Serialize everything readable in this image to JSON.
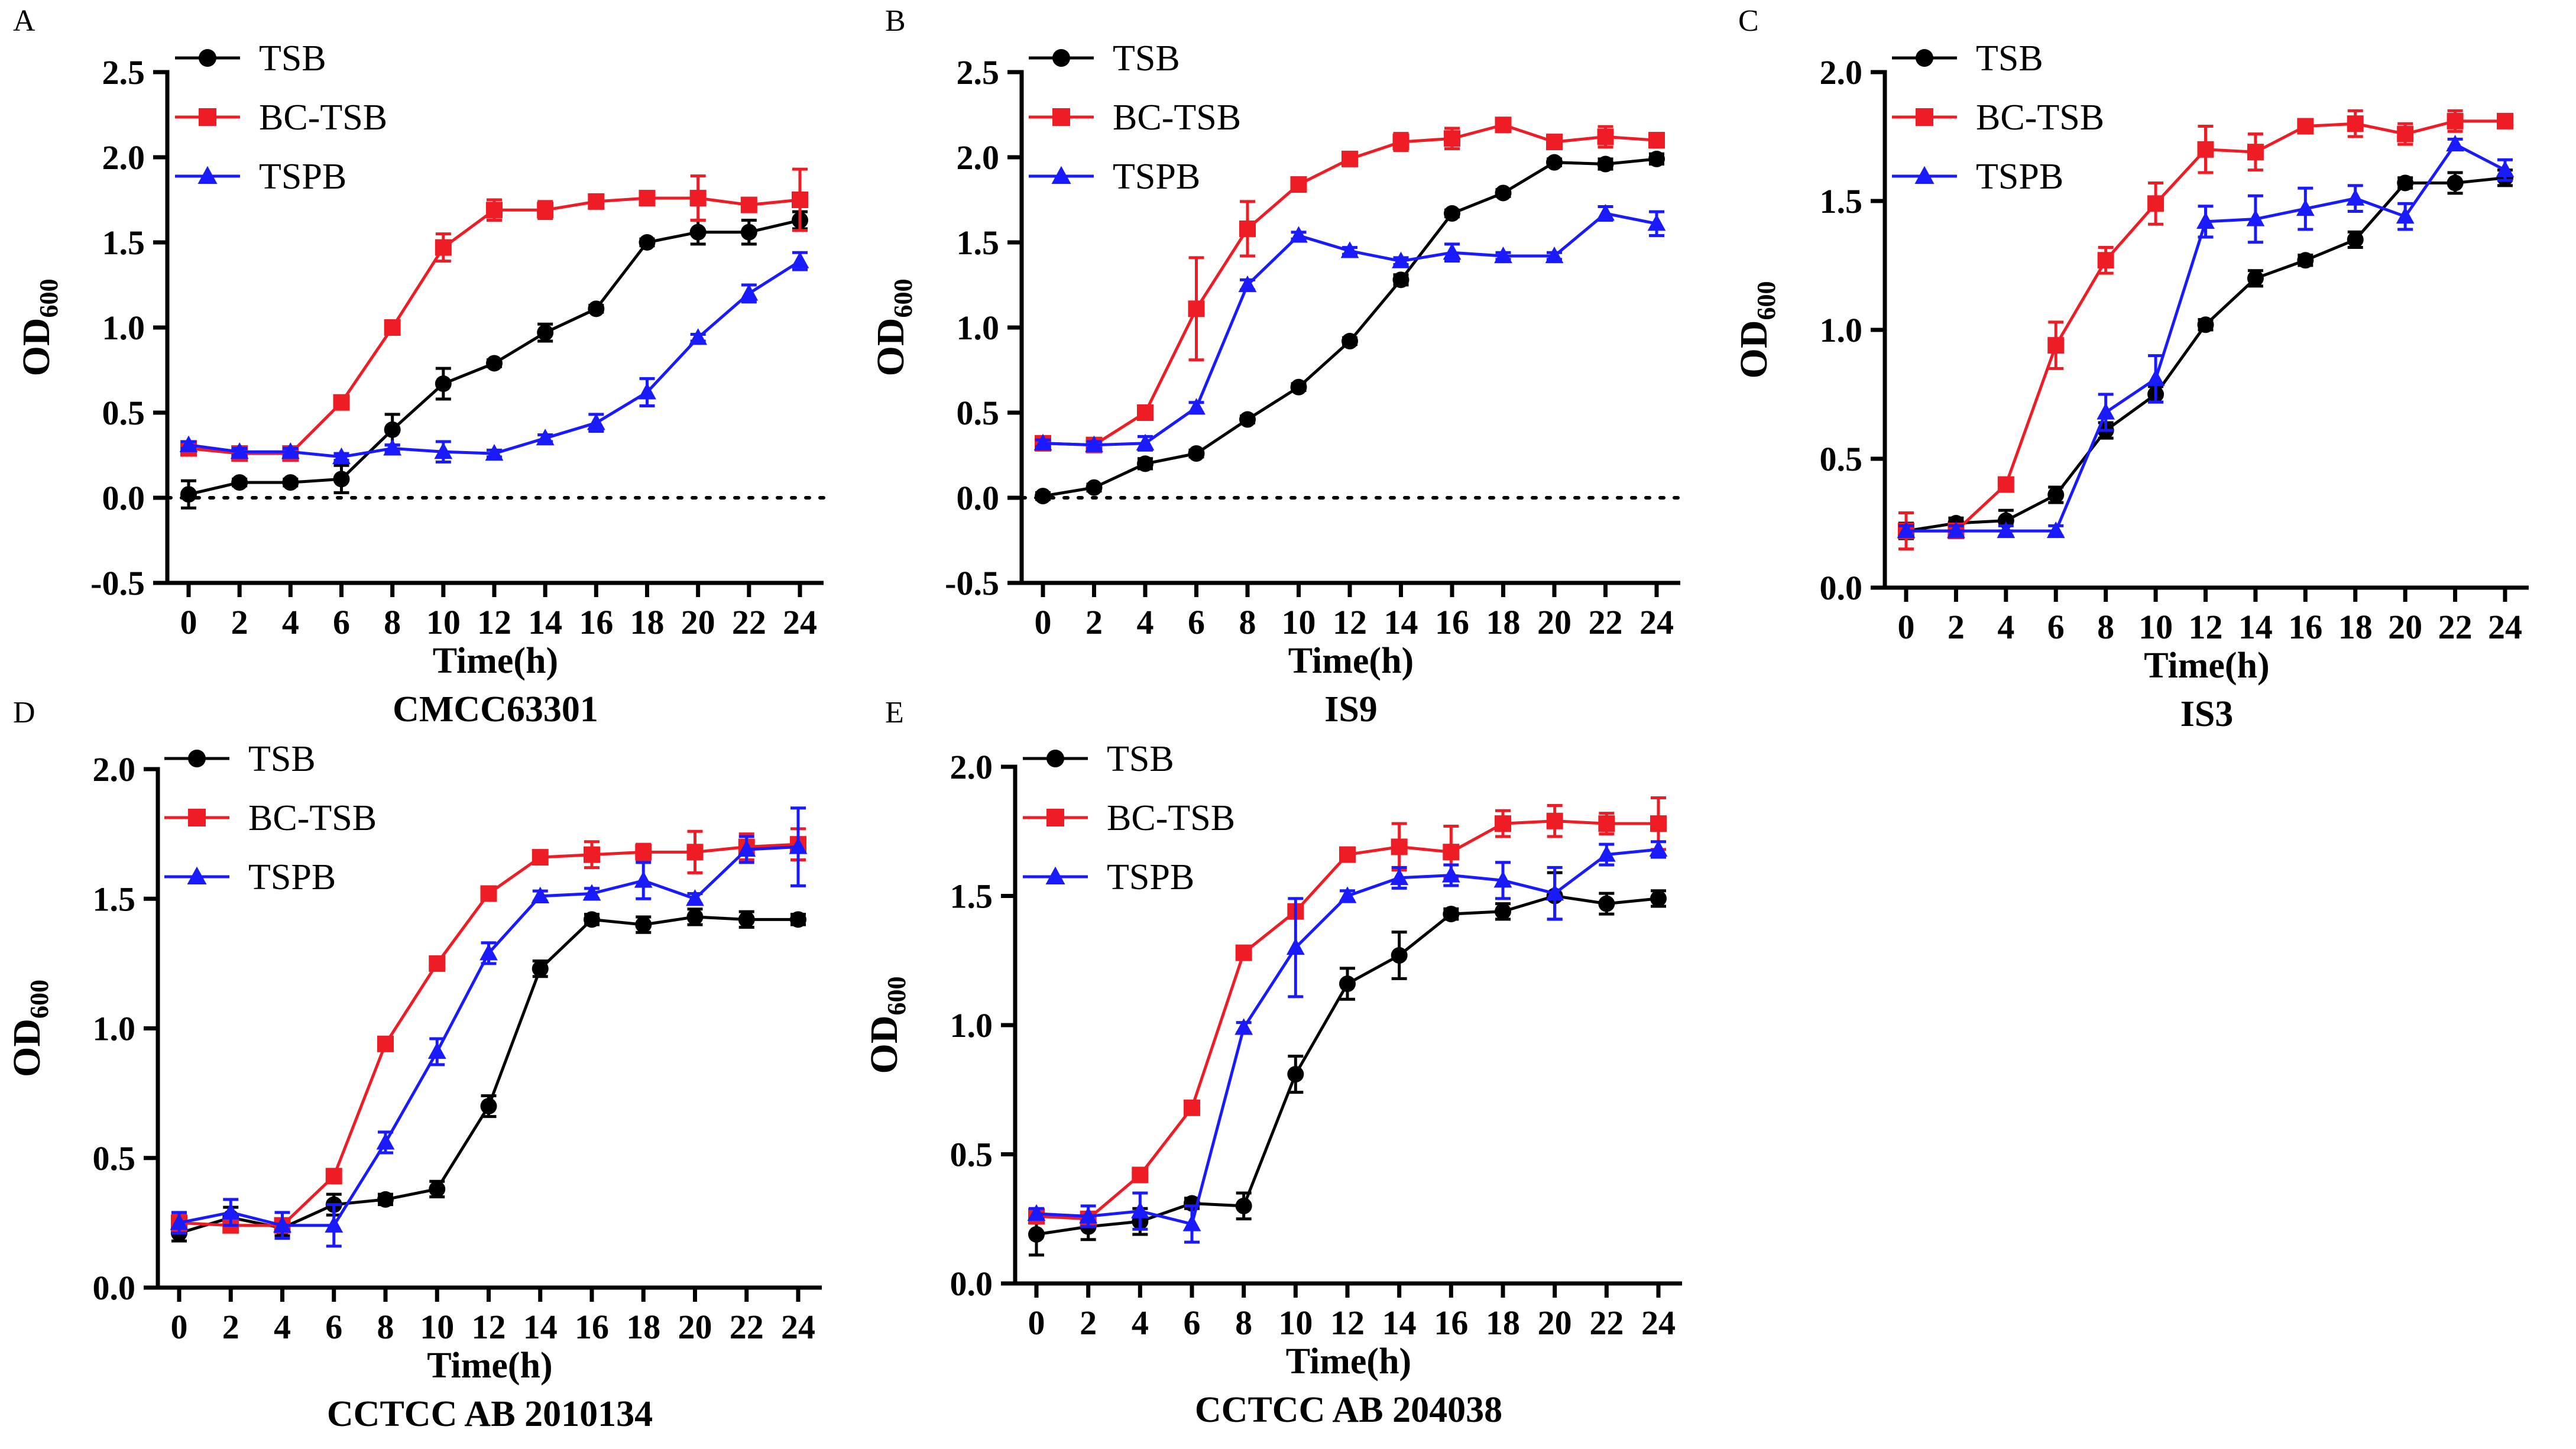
{
  "colors": {
    "TSB": "#000000",
    "BC-TSB": "#ee1c24",
    "TSPB": "#1a1aff"
  },
  "chart_data": [
    {
      "panel_label": "A",
      "type": "line",
      "title": "CMCC63301",
      "xlabel": "Time(h)",
      "ylabel_main": "OD",
      "ylabel_sub": "600",
      "ylim": [
        -0.5,
        2.5
      ],
      "yticks": [
        -0.5,
        0.0,
        0.5,
        1.0,
        1.5,
        2.0,
        2.5
      ],
      "ytick_labels": [
        "-0.5",
        "0.0",
        "0.5",
        "1.0",
        "1.5",
        "2.0",
        "2.5"
      ],
      "x": [
        0,
        2,
        4,
        6,
        8,
        10,
        12,
        14,
        16,
        18,
        20,
        22,
        24
      ],
      "xtick_labels": [
        "0",
        "2",
        "4",
        "6",
        "8",
        "10",
        "12",
        "14",
        "16",
        "18",
        "20",
        "22",
        "24"
      ],
      "zero_line": true,
      "series": [
        {
          "name": "TSB",
          "marker": "circle",
          "values": [
            0.02,
            0.09,
            0.09,
            0.11,
            0.4,
            0.67,
            0.79,
            0.97,
            1.11,
            1.5,
            1.56,
            1.56,
            1.63
          ],
          "errors": [
            0.08,
            0.02,
            0.02,
            0.08,
            0.09,
            0.09,
            0.02,
            0.05,
            0.02,
            0.02,
            0.07,
            0.07,
            0.05
          ]
        },
        {
          "name": "BC-TSB",
          "marker": "square",
          "values": [
            0.29,
            0.26,
            0.26,
            0.56,
            1.0,
            1.47,
            1.69,
            1.69,
            1.74,
            1.76,
            1.76,
            1.72,
            1.75
          ],
          "errors": [
            0.03,
            0.02,
            0.02,
            0.02,
            0.02,
            0.08,
            0.06,
            0.05,
            0.02,
            0.02,
            0.13,
            0.02,
            0.18
          ]
        },
        {
          "name": "TSPB",
          "marker": "triangle",
          "values": [
            0.31,
            0.27,
            0.27,
            0.24,
            0.29,
            0.27,
            0.26,
            0.35,
            0.44,
            0.62,
            0.94,
            1.2,
            1.39
          ],
          "errors": [
            0.02,
            0.02,
            0.02,
            0.02,
            0.02,
            0.06,
            0.02,
            0.02,
            0.05,
            0.08,
            0.02,
            0.05,
            0.05
          ]
        }
      ]
    },
    {
      "panel_label": "B",
      "type": "line",
      "title": "IS9",
      "xlabel": "Time(h)",
      "ylabel_main": "OD",
      "ylabel_sub": "600",
      "ylim": [
        -0.5,
        2.5
      ],
      "yticks": [
        -0.5,
        0.0,
        0.5,
        1.0,
        1.5,
        2.0,
        2.5
      ],
      "ytick_labels": [
        "-0.5",
        "0.0",
        "0.5",
        "1.0",
        "1.5",
        "2.0",
        "2.5"
      ],
      "x": [
        0,
        2,
        4,
        6,
        8,
        10,
        12,
        14,
        16,
        18,
        20,
        22,
        24
      ],
      "xtick_labels": [
        "0",
        "2",
        "4",
        "6",
        "8",
        "10",
        "12",
        "14",
        "16",
        "18",
        "20",
        "22",
        "24"
      ],
      "zero_line": true,
      "series": [
        {
          "name": "TSB",
          "marker": "circle",
          "values": [
            0.01,
            0.06,
            0.2,
            0.26,
            0.46,
            0.65,
            0.92,
            1.28,
            1.67,
            1.79,
            1.97,
            1.96,
            1.99
          ],
          "errors": [
            0.02,
            0.02,
            0.03,
            0.02,
            0.02,
            0.02,
            0.02,
            0.03,
            0.02,
            0.02,
            0.02,
            0.03,
            0.03
          ]
        },
        {
          "name": "BC-TSB",
          "marker": "square",
          "values": [
            0.32,
            0.31,
            0.5,
            1.11,
            1.58,
            1.84,
            1.99,
            2.09,
            2.11,
            2.19,
            2.09,
            2.12,
            2.1
          ],
          "errors": [
            0.02,
            0.02,
            0.02,
            0.3,
            0.16,
            0.03,
            0.02,
            0.05,
            0.06,
            0.02,
            0.02,
            0.06,
            0.04
          ]
        },
        {
          "name": "TSPB",
          "marker": "triangle",
          "values": [
            0.32,
            0.31,
            0.32,
            0.53,
            1.25,
            1.54,
            1.45,
            1.39,
            1.44,
            1.42,
            1.42,
            1.67,
            1.61
          ],
          "errors": [
            0.02,
            0.02,
            0.04,
            0.03,
            0.03,
            0.02,
            0.02,
            0.02,
            0.05,
            0.02,
            0.02,
            0.04,
            0.07
          ]
        }
      ]
    },
    {
      "panel_label": "C",
      "type": "line",
      "title": "IS3",
      "xlabel": "Time(h)",
      "ylabel_main": "OD",
      "ylabel_sub": "600",
      "ylim": [
        0.0,
        2.0
      ],
      "yticks": [
        0.0,
        0.5,
        1.0,
        1.5,
        2.0
      ],
      "ytick_labels": [
        "0.0",
        "0.5",
        "1.0",
        "1.5",
        "2.0"
      ],
      "x": [
        0,
        2,
        4,
        6,
        8,
        10,
        12,
        14,
        16,
        18,
        20,
        22,
        24
      ],
      "xtick_labels": [
        "0",
        "2",
        "4",
        "6",
        "8",
        "10",
        "12",
        "14",
        "16",
        "18",
        "20",
        "22",
        "24"
      ],
      "zero_line": false,
      "series": [
        {
          "name": "TSB",
          "marker": "circle",
          "values": [
            0.22,
            0.25,
            0.26,
            0.36,
            0.61,
            0.75,
            1.02,
            1.2,
            1.27,
            1.35,
            1.57,
            1.57,
            1.59
          ],
          "errors": [
            0.03,
            0.02,
            0.04,
            0.03,
            0.03,
            0.03,
            0.02,
            0.03,
            0.02,
            0.03,
            0.02,
            0.04,
            0.03
          ]
        },
        {
          "name": "BC-TSB",
          "marker": "square",
          "values": [
            0.22,
            0.22,
            0.4,
            0.94,
            1.27,
            1.49,
            1.7,
            1.69,
            1.79,
            1.8,
            1.76,
            1.81,
            1.81
          ],
          "errors": [
            0.07,
            0.02,
            0.02,
            0.09,
            0.05,
            0.08,
            0.09,
            0.07,
            0.02,
            0.05,
            0.04,
            0.04,
            0.02
          ]
        },
        {
          "name": "TSPB",
          "marker": "triangle",
          "values": [
            0.22,
            0.22,
            0.22,
            0.22,
            0.68,
            0.81,
            1.42,
            1.43,
            1.47,
            1.51,
            1.44,
            1.72,
            1.62
          ],
          "errors": [
            0.02,
            0.02,
            0.02,
            0.02,
            0.07,
            0.09,
            0.06,
            0.09,
            0.08,
            0.05,
            0.05,
            0.02,
            0.04
          ]
        }
      ]
    },
    {
      "panel_label": "D",
      "type": "line",
      "title": "CCTCC AB 2010134",
      "xlabel": "Time(h)",
      "ylabel_main": "OD",
      "ylabel_sub": "600",
      "ylim": [
        0.0,
        2.0
      ],
      "yticks": [
        0.0,
        0.5,
        1.0,
        1.5,
        2.0
      ],
      "ytick_labels": [
        "0.0",
        "0.5",
        "1.0",
        "1.5",
        "2.0"
      ],
      "x": [
        0,
        2,
        4,
        6,
        8,
        10,
        12,
        14,
        16,
        18,
        20,
        22,
        24
      ],
      "xtick_labels": [
        "0",
        "2",
        "4",
        "6",
        "8",
        "10",
        "12",
        "14",
        "16",
        "18",
        "20",
        "22",
        "24"
      ],
      "zero_line": false,
      "series": [
        {
          "name": "TSB",
          "marker": "circle",
          "values": [
            0.21,
            0.27,
            0.23,
            0.32,
            0.34,
            0.38,
            0.7,
            1.23,
            1.42,
            1.4,
            1.43,
            1.42,
            1.42
          ],
          "errors": [
            0.03,
            0.04,
            0.03,
            0.04,
            0.02,
            0.03,
            0.04,
            0.03,
            0.02,
            0.03,
            0.03,
            0.03,
            0.02
          ]
        },
        {
          "name": "BC-TSB",
          "marker": "square",
          "values": [
            0.25,
            0.24,
            0.24,
            0.43,
            0.94,
            1.25,
            1.52,
            1.66,
            1.67,
            1.68,
            1.68,
            1.7,
            1.71
          ],
          "errors": [
            0.03,
            0.02,
            0.02,
            0.02,
            0.02,
            0.02,
            0.02,
            0.02,
            0.05,
            0.03,
            0.08,
            0.05,
            0.06
          ]
        },
        {
          "name": "TSPB",
          "marker": "triangle",
          "values": [
            0.25,
            0.29,
            0.24,
            0.24,
            0.56,
            0.91,
            1.29,
            1.51,
            1.52,
            1.57,
            1.5,
            1.69,
            1.7
          ],
          "errors": [
            0.04,
            0.05,
            0.05,
            0.08,
            0.04,
            0.05,
            0.04,
            0.02,
            0.02,
            0.07,
            0.02,
            0.05,
            0.15
          ]
        }
      ]
    },
    {
      "panel_label": "E",
      "type": "line",
      "title": "CCTCC AB 204038",
      "xlabel": "Time(h)",
      "ylabel_main": "OD",
      "ylabel_sub": "600",
      "ylim": [
        0.0,
        2.0
      ],
      "yticks": [
        0.0,
        0.5,
        1.0,
        1.5,
        2.0
      ],
      "ytick_labels": [
        "0.0",
        "0.5",
        "1.0",
        "1.5",
        "2.0"
      ],
      "x": [
        0,
        2,
        4,
        6,
        8,
        10,
        12,
        14,
        16,
        18,
        20,
        22,
        24
      ],
      "xtick_labels": [
        "0",
        "2",
        "4",
        "6",
        "8",
        "10",
        "12",
        "14",
        "16",
        "18",
        "20",
        "22",
        "24"
      ],
      "zero_line": false,
      "series": [
        {
          "name": "TSB",
          "marker": "circle",
          "values": [
            0.19,
            0.22,
            0.24,
            0.31,
            0.3,
            0.81,
            1.16,
            1.27,
            1.43,
            1.44,
            1.5,
            1.47,
            1.49
          ],
          "errors": [
            0.08,
            0.05,
            0.05,
            0.02,
            0.05,
            0.07,
            0.06,
            0.09,
            0.02,
            0.03,
            0.09,
            0.04,
            0.03
          ]
        },
        {
          "name": "BC-TSB",
          "marker": "square",
          "values": [
            0.26,
            0.25,
            0.42,
            0.68,
            1.28,
            1.44,
            1.66,
            1.69,
            1.67,
            1.78,
            1.79,
            1.78,
            1.78
          ],
          "errors": [
            0.02,
            0.02,
            0.02,
            0.02,
            0.02,
            0.02,
            0.02,
            0.09,
            0.1,
            0.05,
            0.06,
            0.04,
            0.1
          ]
        },
        {
          "name": "TSPB",
          "marker": "triangle",
          "values": [
            0.27,
            0.26,
            0.28,
            0.23,
            0.99,
            1.3,
            1.5,
            1.57,
            1.58,
            1.56,
            1.51,
            1.66,
            1.68
          ],
          "errors": [
            0.02,
            0.04,
            0.07,
            0.07,
            0.02,
            0.19,
            0.02,
            0.04,
            0.04,
            0.07,
            0.1,
            0.04,
            0.03
          ]
        }
      ]
    }
  ]
}
